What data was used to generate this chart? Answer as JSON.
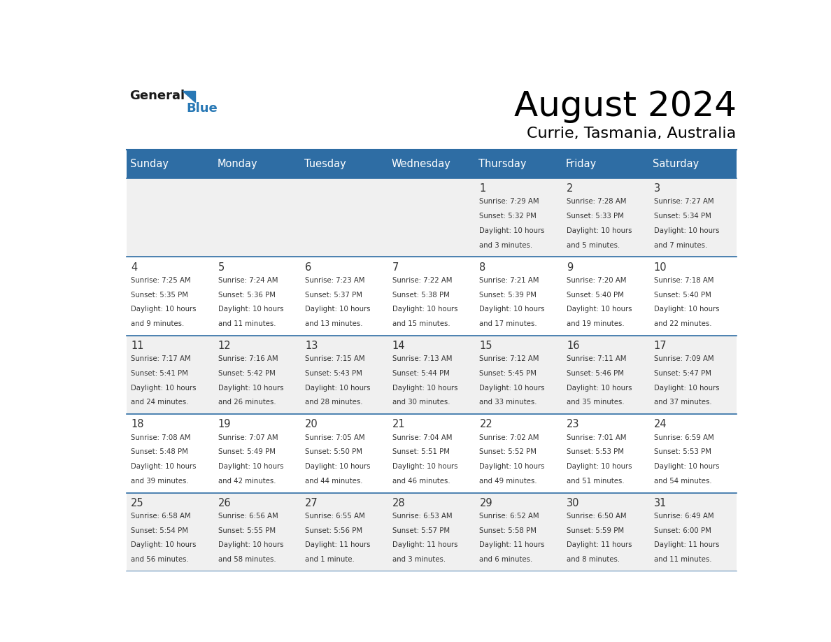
{
  "title": "August 2024",
  "subtitle": "Currie, Tasmania, Australia",
  "days_of_week": [
    "Sunday",
    "Monday",
    "Tuesday",
    "Wednesday",
    "Thursday",
    "Friday",
    "Saturday"
  ],
  "header_bg": "#2e6da4",
  "header_text_color": "#ffffff",
  "row_bg_odd": "#f0f0f0",
  "row_bg_even": "#ffffff",
  "separator_color": "#2e6da4",
  "text_color": "#333333",
  "date_color": "#333333",
  "logo_general_color": "#1a1a1a",
  "logo_blue_color": "#2878b5",
  "calendar_data": [
    [
      null,
      null,
      null,
      null,
      {
        "day": 1,
        "sunrise": "7:29 AM",
        "sunset": "5:32 PM",
        "daylight_line1": "Daylight: 10 hours",
        "daylight_line2": "and 3 minutes."
      },
      {
        "day": 2,
        "sunrise": "7:28 AM",
        "sunset": "5:33 PM",
        "daylight_line1": "Daylight: 10 hours",
        "daylight_line2": "and 5 minutes."
      },
      {
        "day": 3,
        "sunrise": "7:27 AM",
        "sunset": "5:34 PM",
        "daylight_line1": "Daylight: 10 hours",
        "daylight_line2": "and 7 minutes."
      }
    ],
    [
      {
        "day": 4,
        "sunrise": "7:25 AM",
        "sunset": "5:35 PM",
        "daylight_line1": "Daylight: 10 hours",
        "daylight_line2": "and 9 minutes."
      },
      {
        "day": 5,
        "sunrise": "7:24 AM",
        "sunset": "5:36 PM",
        "daylight_line1": "Daylight: 10 hours",
        "daylight_line2": "and 11 minutes."
      },
      {
        "day": 6,
        "sunrise": "7:23 AM",
        "sunset": "5:37 PM",
        "daylight_line1": "Daylight: 10 hours",
        "daylight_line2": "and 13 minutes."
      },
      {
        "day": 7,
        "sunrise": "7:22 AM",
        "sunset": "5:38 PM",
        "daylight_line1": "Daylight: 10 hours",
        "daylight_line2": "and 15 minutes."
      },
      {
        "day": 8,
        "sunrise": "7:21 AM",
        "sunset": "5:39 PM",
        "daylight_line1": "Daylight: 10 hours",
        "daylight_line2": "and 17 minutes."
      },
      {
        "day": 9,
        "sunrise": "7:20 AM",
        "sunset": "5:40 PM",
        "daylight_line1": "Daylight: 10 hours",
        "daylight_line2": "and 19 minutes."
      },
      {
        "day": 10,
        "sunrise": "7:18 AM",
        "sunset": "5:40 PM",
        "daylight_line1": "Daylight: 10 hours",
        "daylight_line2": "and 22 minutes."
      }
    ],
    [
      {
        "day": 11,
        "sunrise": "7:17 AM",
        "sunset": "5:41 PM",
        "daylight_line1": "Daylight: 10 hours",
        "daylight_line2": "and 24 minutes."
      },
      {
        "day": 12,
        "sunrise": "7:16 AM",
        "sunset": "5:42 PM",
        "daylight_line1": "Daylight: 10 hours",
        "daylight_line2": "and 26 minutes."
      },
      {
        "day": 13,
        "sunrise": "7:15 AM",
        "sunset": "5:43 PM",
        "daylight_line1": "Daylight: 10 hours",
        "daylight_line2": "and 28 minutes."
      },
      {
        "day": 14,
        "sunrise": "7:13 AM",
        "sunset": "5:44 PM",
        "daylight_line1": "Daylight: 10 hours",
        "daylight_line2": "and 30 minutes."
      },
      {
        "day": 15,
        "sunrise": "7:12 AM",
        "sunset": "5:45 PM",
        "daylight_line1": "Daylight: 10 hours",
        "daylight_line2": "and 33 minutes."
      },
      {
        "day": 16,
        "sunrise": "7:11 AM",
        "sunset": "5:46 PM",
        "daylight_line1": "Daylight: 10 hours",
        "daylight_line2": "and 35 minutes."
      },
      {
        "day": 17,
        "sunrise": "7:09 AM",
        "sunset": "5:47 PM",
        "daylight_line1": "Daylight: 10 hours",
        "daylight_line2": "and 37 minutes."
      }
    ],
    [
      {
        "day": 18,
        "sunrise": "7:08 AM",
        "sunset": "5:48 PM",
        "daylight_line1": "Daylight: 10 hours",
        "daylight_line2": "and 39 minutes."
      },
      {
        "day": 19,
        "sunrise": "7:07 AM",
        "sunset": "5:49 PM",
        "daylight_line1": "Daylight: 10 hours",
        "daylight_line2": "and 42 minutes."
      },
      {
        "day": 20,
        "sunrise": "7:05 AM",
        "sunset": "5:50 PM",
        "daylight_line1": "Daylight: 10 hours",
        "daylight_line2": "and 44 minutes."
      },
      {
        "day": 21,
        "sunrise": "7:04 AM",
        "sunset": "5:51 PM",
        "daylight_line1": "Daylight: 10 hours",
        "daylight_line2": "and 46 minutes."
      },
      {
        "day": 22,
        "sunrise": "7:02 AM",
        "sunset": "5:52 PM",
        "daylight_line1": "Daylight: 10 hours",
        "daylight_line2": "and 49 minutes."
      },
      {
        "day": 23,
        "sunrise": "7:01 AM",
        "sunset": "5:53 PM",
        "daylight_line1": "Daylight: 10 hours",
        "daylight_line2": "and 51 minutes."
      },
      {
        "day": 24,
        "sunrise": "6:59 AM",
        "sunset": "5:53 PM",
        "daylight_line1": "Daylight: 10 hours",
        "daylight_line2": "and 54 minutes."
      }
    ],
    [
      {
        "day": 25,
        "sunrise": "6:58 AM",
        "sunset": "5:54 PM",
        "daylight_line1": "Daylight: 10 hours",
        "daylight_line2": "and 56 minutes."
      },
      {
        "day": 26,
        "sunrise": "6:56 AM",
        "sunset": "5:55 PM",
        "daylight_line1": "Daylight: 10 hours",
        "daylight_line2": "and 58 minutes."
      },
      {
        "day": 27,
        "sunrise": "6:55 AM",
        "sunset": "5:56 PM",
        "daylight_line1": "Daylight: 11 hours",
        "daylight_line2": "and 1 minute."
      },
      {
        "day": 28,
        "sunrise": "6:53 AM",
        "sunset": "5:57 PM",
        "daylight_line1": "Daylight: 11 hours",
        "daylight_line2": "and 3 minutes."
      },
      {
        "day": 29,
        "sunrise": "6:52 AM",
        "sunset": "5:58 PM",
        "daylight_line1": "Daylight: 11 hours",
        "daylight_line2": "and 6 minutes."
      },
      {
        "day": 30,
        "sunrise": "6:50 AM",
        "sunset": "5:59 PM",
        "daylight_line1": "Daylight: 11 hours",
        "daylight_line2": "and 8 minutes."
      },
      {
        "day": 31,
        "sunrise": "6:49 AM",
        "sunset": "6:00 PM",
        "daylight_line1": "Daylight: 11 hours",
        "daylight_line2": "and 11 minutes."
      }
    ]
  ]
}
